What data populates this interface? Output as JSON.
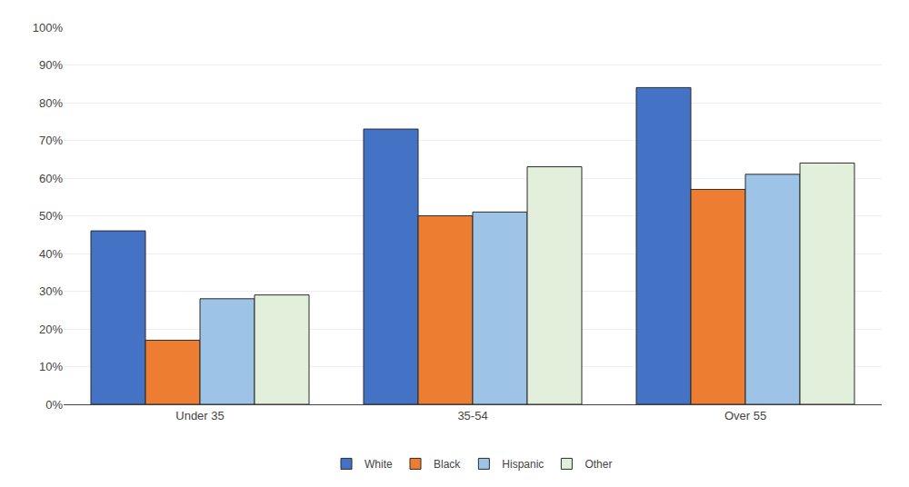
{
  "chart_data": {
    "type": "bar",
    "categories": [
      "Under 35",
      "35-54",
      "Over 55"
    ],
    "series": [
      {
        "name": "White",
        "color": "#4472C4",
        "values": [
          0.46,
          0.73,
          0.84
        ]
      },
      {
        "name": "Black",
        "color": "#ED7D31",
        "values": [
          0.17,
          0.5,
          0.57
        ]
      },
      {
        "name": "Hispanic",
        "color": "#9DC3E6",
        "values": [
          0.28,
          0.51,
          0.61
        ]
      },
      {
        "name": "Other",
        "color": "#E2EFDA",
        "values": [
          0.29,
          0.63,
          0.64
        ]
      }
    ],
    "ylim": [
      0,
      1.0
    ],
    "yticks": [
      {
        "value": 0.0,
        "label": "0%"
      },
      {
        "value": 0.1,
        "label": "10%"
      },
      {
        "value": 0.2,
        "label": "20%"
      },
      {
        "value": 0.3,
        "label": "30%"
      },
      {
        "value": 0.4,
        "label": "40%"
      },
      {
        "value": 0.5,
        "label": "50%"
      },
      {
        "value": 0.6,
        "label": "60%"
      },
      {
        "value": 0.7,
        "label": "70%"
      },
      {
        "value": 0.8,
        "label": "80%"
      },
      {
        "value": 0.9,
        "label": "90%"
      },
      {
        "value": 1.0,
        "label": "100%"
      }
    ],
    "grid": true,
    "legend": "bottom"
  }
}
